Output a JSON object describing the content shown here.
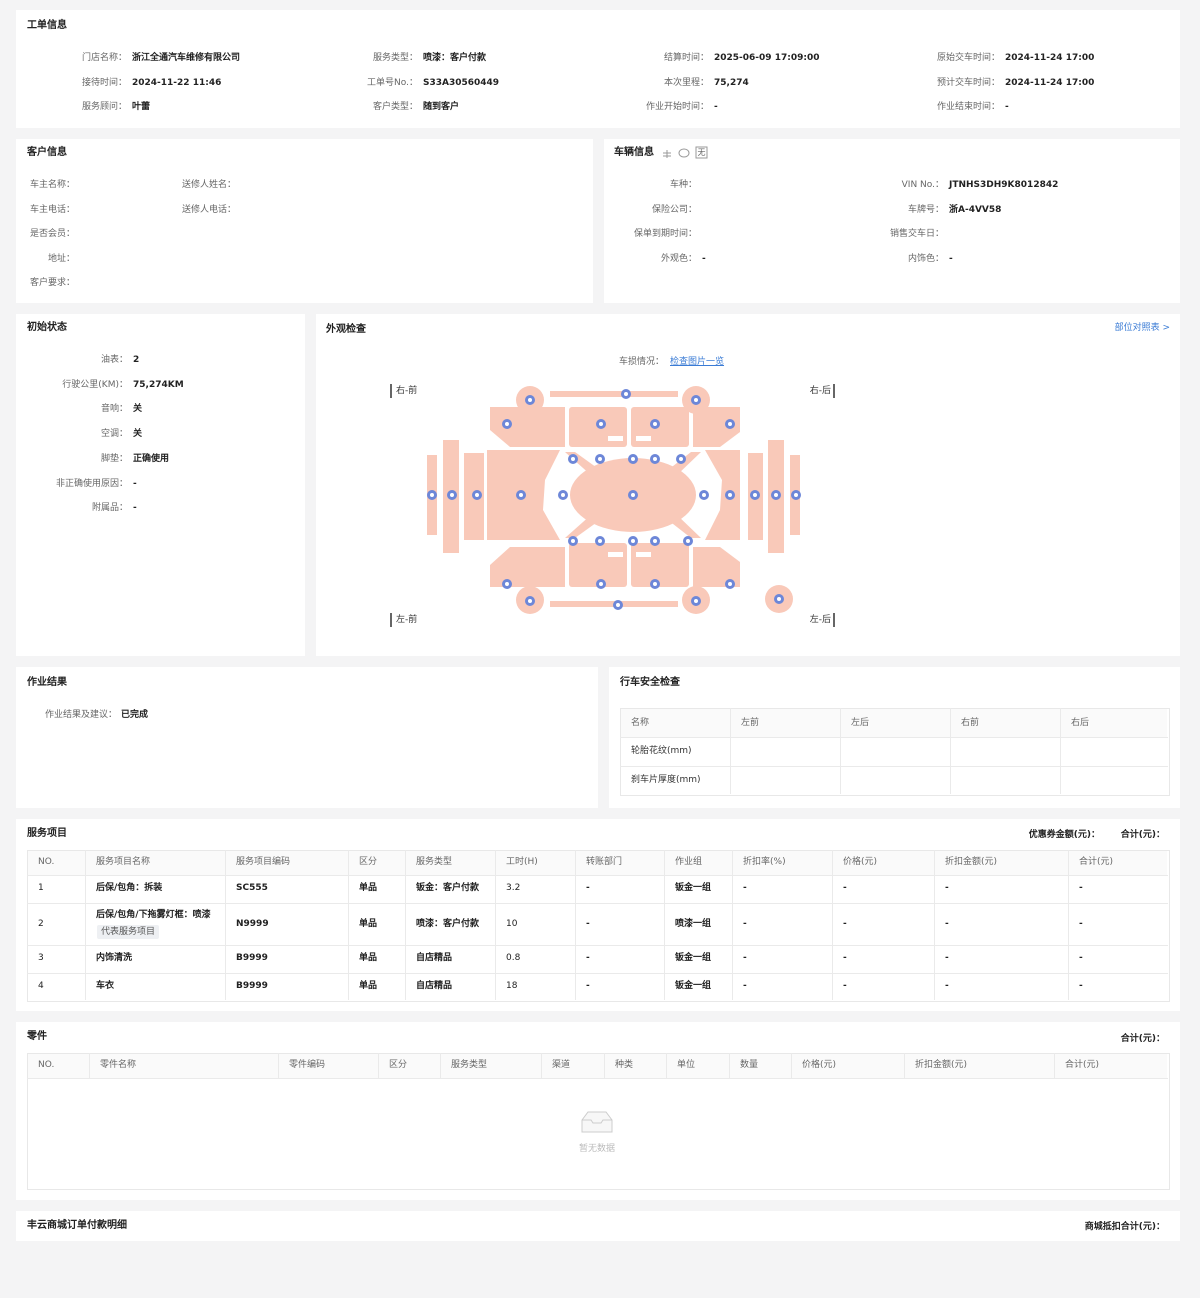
{
  "work_order": {
    "title": "工单信息",
    "fields": [
      {
        "label": "门店名称：",
        "value": "浙江全通汽车维修有限公司"
      },
      {
        "label": "服务类型：",
        "value": "喷漆：客户付款"
      },
      {
        "label": "结算时间：",
        "value": "2025-06-09 17:09:00"
      },
      {
        "label": "原始交车时间：",
        "value": "2024-11-24 17:00"
      },
      {
        "label": "接待时间：",
        "value": "2024-11-22 11:46"
      },
      {
        "label": "工单号No.：",
        "value": "S33A30560449"
      },
      {
        "label": "本次里程：",
        "value": "75,274"
      },
      {
        "label": "预计交车时间：",
        "value": "2024-11-24 17:00"
      },
      {
        "label": "服务顾问：",
        "value": "叶蕾"
      },
      {
        "label": "客户类型：",
        "value": "随到客户"
      },
      {
        "label": "作业开始时间：",
        "value": "-"
      },
      {
        "label": "作业结束时间：",
        "value": "-"
      }
    ]
  },
  "customer": {
    "title": "客户信息",
    "fields": [
      {
        "label": "车主名称："
      },
      {
        "label": "送修人姓名："
      },
      {
        "label": "车主电话："
      },
      {
        "label": "送修人电话："
      },
      {
        "label": "是否会员："
      },
      {
        "label": "地址："
      },
      {
        "label": "客户要求："
      }
    ]
  },
  "vehicle": {
    "title": "车辆信息",
    "badge": "无",
    "fields": [
      {
        "label": "车种："
      },
      {
        "label": "VIN No.：",
        "value": "JTNHS3DH9K8012842"
      },
      {
        "label": "保险公司："
      },
      {
        "label": "车牌号：",
        "value": "浙A-4VV58"
      },
      {
        "label": "保单到期时间："
      },
      {
        "label": "销售交车日："
      },
      {
        "label": "外观色：",
        "value": "-"
      },
      {
        "label": "内饰色：",
        "value": "-"
      }
    ]
  },
  "initial_state": {
    "title": "初始状态",
    "fields": [
      {
        "label": "油表：",
        "value": "2"
      },
      {
        "label": "行驶公里(KM)：",
        "value": "75,274KM"
      },
      {
        "label": "音响：",
        "value": "关"
      },
      {
        "label": "空调：",
        "value": "关"
      },
      {
        "label": "脚垫：",
        "value": "正确使用"
      },
      {
        "label": "非正确使用原因：",
        "value": "-"
      },
      {
        "label": "附属品：",
        "value": "-"
      }
    ]
  },
  "exterior": {
    "title": "外观检查",
    "link": "部位对照表 >",
    "damage_label": "车损情况：",
    "damage_link": "检查图片一览",
    "corners": [
      "右-前",
      "右-后",
      "左-前",
      "左-后"
    ]
  },
  "work_result": {
    "title": "作业结果",
    "label": "作业结果及建议：",
    "value": "已完成"
  },
  "safety": {
    "title": "行车安全检查",
    "header": [
      "名称",
      "左前",
      "左后",
      "右前",
      "右后"
    ],
    "rows": [
      [
        "轮胎花纹(mm)"
      ],
      [
        "刹车片厚度(mm)"
      ]
    ]
  },
  "services": {
    "title": "服务项目",
    "summary": [
      "优惠券金额(元)：",
      "合计(元)："
    ],
    "header": [
      "NO.",
      "服务项目名称",
      "服务项目编码",
      "区分",
      "服务类型",
      "工时(H)",
      "转账部门",
      "作业组",
      "折扣率(%)",
      "价格(元)",
      "折扣金额(元)",
      "合计(元)"
    ],
    "rows": [
      {
        "cells": [
          "1",
          "后保/包角：拆装",
          "SC555",
          "单品",
          "钣金：客户付款",
          "3.2",
          "-",
          "钣金一组",
          "-",
          "-",
          "-",
          "-"
        ]
      },
      {
        "cells": [
          "2",
          "后保/包角/下拖雾灯框：喷漆",
          "N9999",
          "单品",
          "喷漆：客户付款",
          "10",
          "-",
          "喷漆一组",
          "-",
          "-",
          "-",
          "-"
        ],
        "tag": "代表服务项目"
      },
      {
        "cells": [
          "3",
          "内饰清洗",
          "B9999",
          "单品",
          "自店精品",
          "0.8",
          "-",
          "钣金一组",
          "-",
          "-",
          "-",
          "-"
        ]
      },
      {
        "cells": [
          "4",
          "车衣",
          "B9999",
          "单品",
          "自店精品",
          "18",
          "-",
          "钣金一组",
          "-",
          "-",
          "-",
          "-"
        ]
      }
    ]
  },
  "parts": {
    "title": "零件",
    "summary": "合计(元)：",
    "header": [
      "NO.",
      "零件名称",
      "零件编码",
      "区分",
      "服务类型",
      "渠道",
      "种类",
      "单位",
      "数量",
      "价格(元)",
      "折扣金额(元)",
      "合计(元)"
    ],
    "empty": "暂无数据"
  },
  "mall": {
    "title": "丰云商城订单付款明细",
    "summary": "商城抵扣合计(元)："
  }
}
